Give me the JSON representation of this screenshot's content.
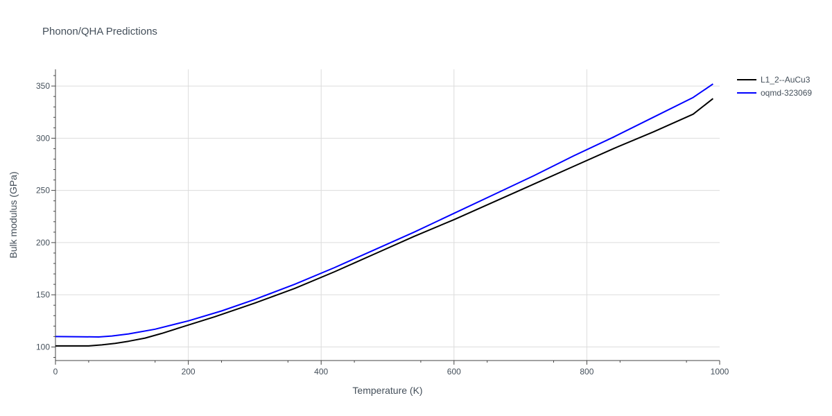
{
  "chart_data": {
    "type": "line",
    "title": "Phonon/QHA Predictions",
    "xlabel": "Temperature (K)",
    "ylabel": "Bulk modulus (GPa)",
    "xlim": [
      0,
      1000
    ],
    "ylim": [
      87,
      366
    ],
    "x_ticks": [
      0,
      200,
      400,
      600,
      800,
      1000
    ],
    "y_ticks": [
      100,
      150,
      200,
      250,
      300,
      350
    ],
    "grid": true,
    "legend_position": "top-right",
    "series": [
      {
        "name": "L1_2--AuCu3",
        "color": "#000000",
        "x": [
          0,
          50,
          70,
          90,
          110,
          135,
          160,
          190,
          240,
          300,
          360,
          420,
          480,
          540,
          600,
          660,
          720,
          780,
          840,
          900,
          960,
          990
        ],
        "y": [
          101,
          101,
          102,
          103.5,
          105.5,
          108.5,
          113,
          119,
          129,
          142,
          156,
          172,
          189,
          206,
          222,
          239,
          256,
          273,
          290,
          306,
          323,
          338
        ]
      },
      {
        "name": "oqmd-323069",
        "color": "#0000ff",
        "x": [
          0,
          40,
          65,
          85,
          110,
          150,
          200,
          250,
          300,
          360,
          420,
          480,
          540,
          600,
          660,
          720,
          780,
          840,
          900,
          960,
          990
        ],
        "y": [
          110,
          109.8,
          109.6,
          110.5,
          112.5,
          117,
          125,
          134.5,
          145.5,
          160,
          176,
          193,
          210,
          228,
          246,
          264,
          283,
          301,
          320,
          339,
          352
        ]
      }
    ]
  }
}
